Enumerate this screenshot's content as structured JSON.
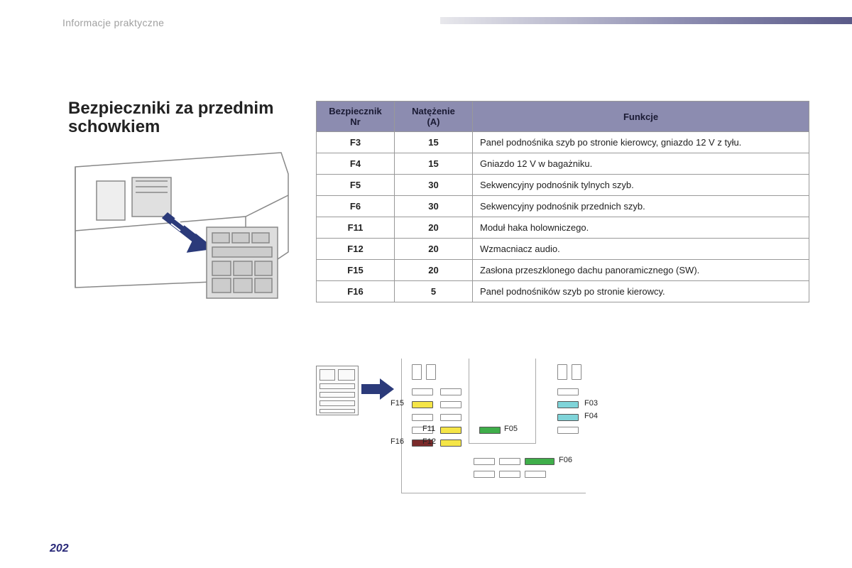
{
  "header": {
    "section_label": "Informacje praktyczne"
  },
  "title": "Bezpieczniki za przednim schowkiem",
  "table": {
    "headers": {
      "col1": "Bezpiecznik\nNr",
      "col2": "Natężenie\n(A)",
      "col3": "Funkcje"
    },
    "header_bg": "#8c8cb0",
    "border_color": "#999999",
    "rows": [
      {
        "nr": "F3",
        "amp": "15",
        "fn": "Panel podnośnika szyb po stronie kierowcy, gniazdo 12 V z tyłu."
      },
      {
        "nr": "F4",
        "amp": "15",
        "fn": "Gniazdo 12 V w bagażniku."
      },
      {
        "nr": "F5",
        "amp": "30",
        "fn": "Sekwencyjny podnośnik tylnych szyb."
      },
      {
        "nr": "F6",
        "amp": "30",
        "fn": "Sekwencyjny podnośnik przednich szyb."
      },
      {
        "nr": "F11",
        "amp": "20",
        "fn": "Moduł haka holowniczego."
      },
      {
        "nr": "F12",
        "amp": "20",
        "fn": "Wzmacniacz audio."
      },
      {
        "nr": "F15",
        "amp": "20",
        "fn": "Zasłona przeszklonego dachu panoramicznego (SW)."
      },
      {
        "nr": "F16",
        "amp": "5",
        "fn": "Panel podnośników szyb po stronie kierowcy."
      }
    ]
  },
  "fuse_layout": {
    "arrow_color": "#2b3a7a",
    "labels": {
      "F15": "F15",
      "F11": "F11",
      "F12": "F12",
      "F16": "F16",
      "F03": "F03",
      "F04": "F04",
      "F05": "F05",
      "F06": "F06"
    },
    "colors": {
      "yellow": "#f5e547",
      "green": "#3fae4a",
      "cyan": "#7fd4d9",
      "maroon": "#7a2a2a",
      "empty": "#ffffff"
    }
  },
  "page_number": "202"
}
